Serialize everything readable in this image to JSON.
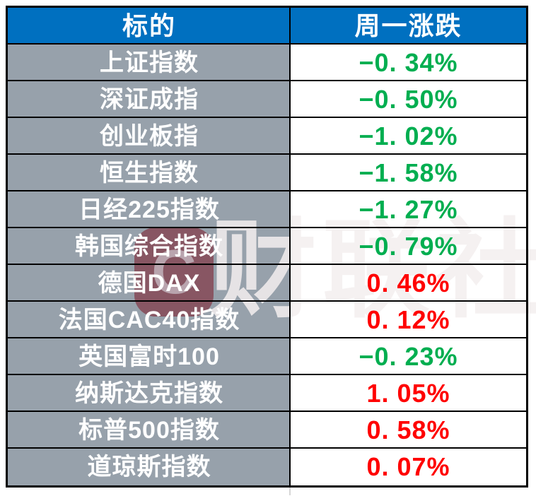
{
  "table": {
    "columns": [
      {
        "label": "标的"
      },
      {
        "label": "周一涨跌"
      }
    ],
    "rows": [
      {
        "target": "上证指数",
        "change_display": "−0. 34%",
        "change_pct": -0.34,
        "direction": "down"
      },
      {
        "target": "深证成指",
        "change_display": "−0. 50%",
        "change_pct": -0.5,
        "direction": "down"
      },
      {
        "target": "创业板指",
        "change_display": "−1. 02%",
        "change_pct": -1.02,
        "direction": "down"
      },
      {
        "target": "恒生指数",
        "change_display": "−1. 58%",
        "change_pct": -1.58,
        "direction": "down"
      },
      {
        "target": "日经225指数",
        "change_display": "−1. 27%",
        "change_pct": -1.27,
        "direction": "down"
      },
      {
        "target": "韩国综合指数",
        "change_display": "−0. 79%",
        "change_pct": -0.79,
        "direction": "down"
      },
      {
        "target": "德国DAX",
        "change_display": "0. 46%",
        "change_pct": 0.46,
        "direction": "up"
      },
      {
        "target": "法国CAC40指数",
        "change_display": "0. 12%",
        "change_pct": 0.12,
        "direction": "up"
      },
      {
        "target": "英国富时100",
        "change_display": "−0. 23%",
        "change_pct": -0.23,
        "direction": "down"
      },
      {
        "target": "纳斯达克指数",
        "change_display": "1. 05%",
        "change_pct": 1.05,
        "direction": "up"
      },
      {
        "target": "标普500指数",
        "change_display": "0. 58%",
        "change_pct": 0.58,
        "direction": "up"
      },
      {
        "target": "道琼斯指数",
        "change_display": "0. 07%",
        "change_pct": 0.07,
        "direction": "up"
      }
    ],
    "colors": {
      "header_bg": "#0070C0",
      "header_text": "#FFFFFF",
      "label_bg": "#97A1AB",
      "label_text": "#FFFFFF",
      "up_red": "#FF0000",
      "down_green": "#00AE50",
      "border": "#000000"
    }
  },
  "watermark": {
    "logo_letter": "C",
    "text": "财联社"
  },
  "chart_data": {
    "type": "table",
    "title": "",
    "columns": [
      "标的",
      "周一涨跌"
    ],
    "rows": [
      [
        "上证指数",
        "-0.34%"
      ],
      [
        "深证成指",
        "-0.50%"
      ],
      [
        "创业板指",
        "-1.02%"
      ],
      [
        "恒生指数",
        "-1.58%"
      ],
      [
        "日经225指数",
        "-1.27%"
      ],
      [
        "韩国综合指数",
        "-0.79%"
      ],
      [
        "德国DAX",
        "0.46%"
      ],
      [
        "法国CAC40指数",
        "0.12%"
      ],
      [
        "英国富时100",
        "-0.23%"
      ],
      [
        "纳斯达克指数",
        "1.05%"
      ],
      [
        "标普500指数",
        "0.58%"
      ],
      [
        "道琼斯指数",
        "0.07%"
      ]
    ],
    "values_pct": [
      -0.34,
      -0.5,
      -1.02,
      -1.58,
      -1.27,
      -0.79,
      0.46,
      0.12,
      -0.23,
      1.05,
      0.58,
      0.07
    ],
    "color_convention": "red = rise, green = fall",
    "legend_position": "none",
    "grid": true
  }
}
